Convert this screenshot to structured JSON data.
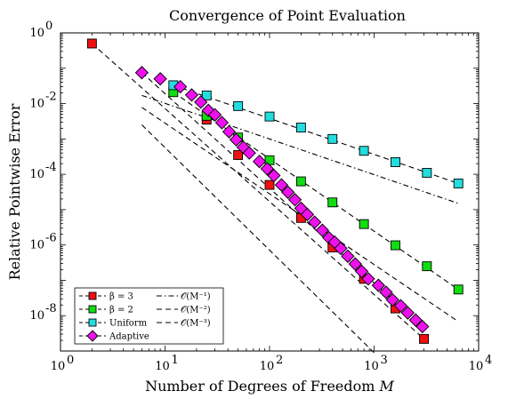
{
  "chart_data": {
    "type": "scatter",
    "title": "Convergence of Point Evaluation",
    "xlabel": "Number of Degrees of Freedom M",
    "ylabel": "Relative Pointwise Error",
    "xscale": "log",
    "yscale": "log",
    "xlim": [
      1,
      10000
    ],
    "ylim": [
      1e-09,
      1
    ],
    "x_ticks": [
      {
        "value": 1,
        "base": "10",
        "exp": "0"
      },
      {
        "value": 10,
        "base": "10",
        "exp": "1"
      },
      {
        "value": 100,
        "base": "10",
        "exp": "2"
      },
      {
        "value": 1000,
        "base": "10",
        "exp": "3"
      },
      {
        "value": 10000,
        "base": "10",
        "exp": "4"
      }
    ],
    "y_ticks": [
      {
        "value": 1,
        "base": "10",
        "exp": "0"
      },
      {
        "value": 0.01,
        "base": "10",
        "exp": "-2"
      },
      {
        "value": 0.0001,
        "base": "10",
        "exp": "-4"
      },
      {
        "value": 1e-06,
        "base": "10",
        "exp": "-6"
      },
      {
        "value": 1e-08,
        "base": "10",
        "exp": "-8"
      }
    ],
    "grid": false,
    "legend_position": "bottom-left",
    "series": [
      {
        "name": "β = 3",
        "marker": "square",
        "color": "#ee1111",
        "points": [
          [
            2,
            0.5
          ],
          [
            25,
            0.0035
          ],
          [
            50,
            0.00035
          ],
          [
            100,
            5e-05
          ],
          [
            200,
            5.8e-06
          ],
          [
            400,
            8.5e-07
          ],
          [
            800,
            1.1e-07
          ],
          [
            1600,
            1.6e-08
          ],
          [
            3000,
            2.2e-09
          ]
        ]
      },
      {
        "name": "β = 2",
        "marker": "square",
        "color": "#11dd11",
        "points": [
          [
            12,
            0.021
          ],
          [
            25,
            0.0045
          ],
          [
            50,
            0.0011
          ],
          [
            100,
            0.00025
          ],
          [
            200,
            6.3e-05
          ],
          [
            400,
            1.6e-05
          ],
          [
            800,
            3.9e-06
          ],
          [
            1600,
            9.8e-07
          ],
          [
            3200,
            2.5e-07
          ],
          [
            6400,
            5.5e-08
          ]
        ]
      },
      {
        "name": "Uniform",
        "marker": "square",
        "color": "#22dddd",
        "points": [
          [
            12,
            0.033
          ],
          [
            25,
            0.017
          ],
          [
            50,
            0.0085
          ],
          [
            100,
            0.0043
          ],
          [
            200,
            0.0021
          ],
          [
            400,
            0.001
          ],
          [
            800,
            0.00046
          ],
          [
            1600,
            0.00022
          ],
          [
            3200,
            0.00011
          ],
          [
            6400,
            5.5e-05
          ]
        ]
      },
      {
        "name": "Adaptive",
        "marker": "diamond",
        "color": "#ee11ee",
        "points": [
          [
            6,
            0.075
          ],
          [
            9,
            0.05
          ],
          [
            14,
            0.03
          ],
          [
            18,
            0.0175
          ],
          [
            22,
            0.011
          ],
          [
            26,
            0.0064
          ],
          [
            30,
            0.0048
          ],
          [
            35,
            0.0029
          ],
          [
            41,
            0.0016
          ],
          [
            48,
            0.00095
          ],
          [
            56,
            0.00058
          ],
          [
            64,
            0.0004
          ],
          [
            80,
            0.00023
          ],
          [
            95,
            0.000143
          ],
          [
            110,
            9.2e-05
          ],
          [
            130,
            5e-05
          ],
          [
            150,
            3.1e-05
          ],
          [
            175,
            1.9e-05
          ],
          [
            200,
            1.09e-05
          ],
          [
            230,
            7.3e-06
          ],
          [
            270,
            4.4e-06
          ],
          [
            320,
            2.6e-06
          ],
          [
            370,
            1.6e-06
          ],
          [
            420,
            1.2e-06
          ],
          [
            480,
            8e-07
          ],
          [
            560,
            4.8e-07
          ],
          [
            660,
            2.9e-07
          ],
          [
            760,
            1.8e-07
          ],
          [
            880,
            1.1e-07
          ],
          [
            1100,
            7.2e-08
          ],
          [
            1300,
            4.6e-08
          ],
          [
            1500,
            2.8e-08
          ],
          [
            1800,
            1.9e-08
          ],
          [
            2100,
            1.2e-08
          ],
          [
            2500,
            7.5e-09
          ],
          [
            2900,
            4.9e-09
          ]
        ]
      }
    ],
    "reference_lines": [
      {
        "name": "𝒪(M⁻¹)",
        "style": "dashdot",
        "from": [
          6,
          0.017
        ],
        "to": [
          6400,
          1.5e-05
        ]
      },
      {
        "name": "𝒪(M⁻²)",
        "style": "dashed",
        "from": [
          6,
          0.0078
        ],
        "to": [
          6400,
          6.8e-09
        ]
      },
      {
        "name": "𝒪(M⁻³)",
        "style": "dashed",
        "from": [
          6,
          0.0025
        ],
        "to": [
          1000,
          9e-10
        ]
      }
    ],
    "fit_lines": [
      {
        "series": "β = 3",
        "from": [
          2,
          0.5
        ],
        "to": [
          3000,
          2.2e-09
        ]
      },
      {
        "series": "β = 2",
        "from": [
          12,
          0.021
        ],
        "to": [
          6400,
          5.5e-08
        ]
      },
      {
        "series": "Uniform",
        "from": [
          12,
          0.033
        ],
        "to": [
          6400,
          5.5e-05
        ]
      },
      {
        "series": "Adaptive",
        "from": [
          6,
          0.075
        ],
        "to": [
          2900,
          4.9e-09
        ]
      }
    ]
  }
}
